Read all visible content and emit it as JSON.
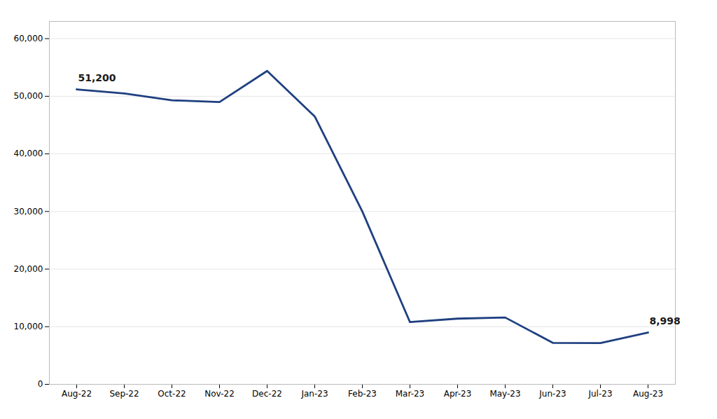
{
  "chart_data": {
    "type": "line",
    "categories": [
      "Aug-22",
      "Sep-22",
      "Oct-22",
      "Nov-22",
      "Dec-22",
      "Jan-23",
      "Feb-23",
      "Mar-23",
      "Apr-23",
      "May-23",
      "Jun-23",
      "Jul-23",
      "Aug-23"
    ],
    "values": [
      51200,
      50500,
      49300,
      49000,
      54400,
      46500,
      30000,
      10800,
      11400,
      11600,
      7200,
      7150,
      8998
    ],
    "color": "#1F4080",
    "ylim": [
      0,
      63000
    ],
    "yticks": [
      0,
      {
        "value": 10000,
        "label": "10,000"
      },
      {
        "value": 20000,
        "label": "20,000"
      },
      {
        "value": 30000,
        "label": "30,000"
      },
      {
        "value": 40000,
        "label": "40,000"
      },
      {
        "value": 50000,
        "label": "50,000"
      },
      {
        "value": 60000,
        "label": "60,000"
      }
    ],
    "grid": true,
    "annotations": [
      {
        "text": "51,200",
        "x": "Aug-22",
        "y": 51200
      },
      {
        "text": "8,998",
        "x": "Aug-23",
        "y": 8998
      }
    ]
  }
}
